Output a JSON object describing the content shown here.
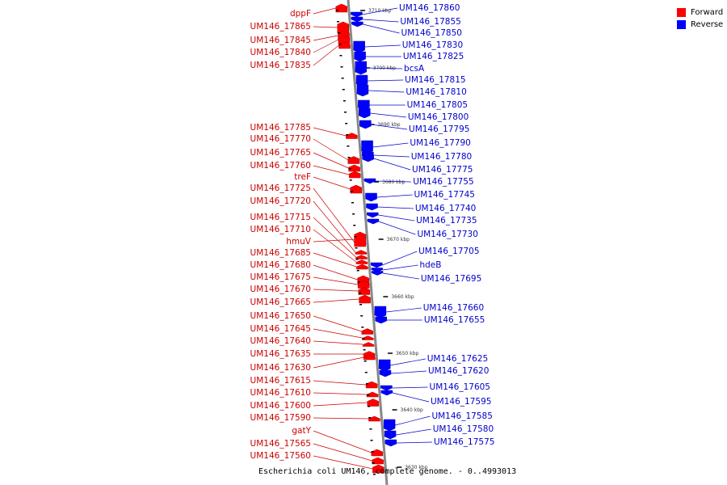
{
  "caption": "Escherichia coli UM146, complete genome. - 0..4993013",
  "legend": [
    {
      "label": "Forward",
      "color": "#ff0000"
    },
    {
      "label": "Reverse",
      "color": "#0000ff"
    }
  ],
  "colors": {
    "forward_label": "#cc0000",
    "reverse_label": "#0000cc",
    "backbone": "#888888"
  },
  "ticks": [
    "3710 kbp",
    "3700 kbp",
    "3690 kbp",
    "3680 kbp",
    "3670 kbp",
    "3660 kbp",
    "3650 kbp",
    "3640 kbp",
    "3630 kbp"
  ],
  "forward_genes": [
    "dppF",
    "UM146_17865",
    "UM146_17845",
    "UM146_17840",
    "UM146_17835",
    "UM146_17785",
    "UM146_17770",
    "UM146_17765",
    "UM146_17760",
    "treF",
    "UM146_17725",
    "UM146_17720",
    "UM146_17715",
    "UM146_17710",
    "hmuV",
    "UM146_17685",
    "UM146_17680",
    "UM146_17675",
    "UM146_17670",
    "UM146_17665",
    "UM146_17650",
    "UM146_17645",
    "UM146_17640",
    "UM146_17635",
    "UM146_17630",
    "UM146_17615",
    "UM146_17610",
    "UM146_17600",
    "UM146_17590",
    "gatY",
    "UM146_17565",
    "UM146_17560"
  ],
  "reverse_genes": [
    "UM146_17860",
    "UM146_17855",
    "UM146_17850",
    "UM146_17830",
    "UM146_17825",
    "bcsA",
    "UM146_17815",
    "UM146_17810",
    "UM146_17805",
    "UM146_17800",
    "UM146_17795",
    "UM146_17790",
    "UM146_17780",
    "UM146_17775",
    "UM146_17755",
    "UM146_17745",
    "UM146_17740",
    "UM146_17735",
    "UM146_17730",
    "UM146_17705",
    "hdeB",
    "UM146_17695",
    "UM146_17660",
    "UM146_17655",
    "UM146_17625",
    "UM146_17620",
    "UM146_17605",
    "UM146_17595",
    "UM146_17585",
    "UM146_17580",
    "UM146_17575"
  ]
}
